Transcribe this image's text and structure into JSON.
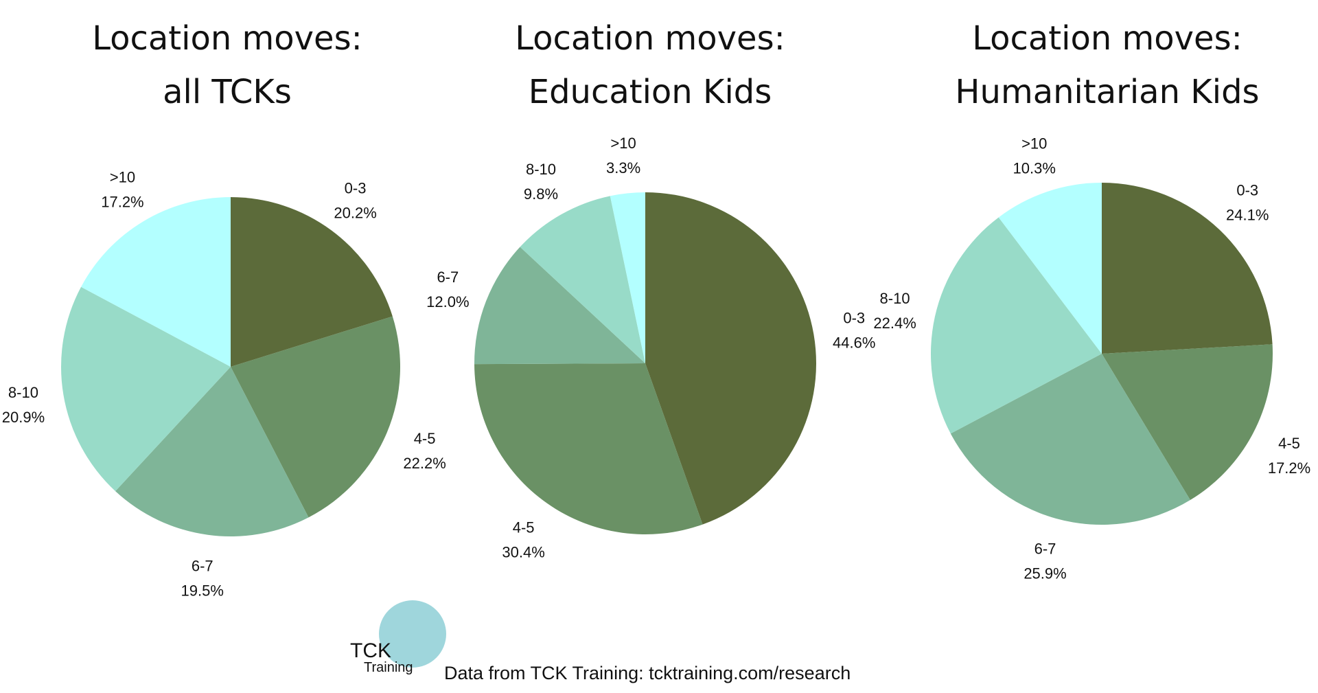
{
  "chart_data": [
    {
      "type": "pie",
      "title": [
        "Location moves:",
        "all TCKs"
      ],
      "categories": [
        "0-3",
        "4-5",
        "6-7",
        "8-10",
        ">10"
      ],
      "values": [
        20.2,
        22.2,
        19.5,
        20.9,
        17.2
      ],
      "value_labels": [
        "20.2%",
        "22.2%",
        "19.5%",
        "20.9%",
        "17.2%"
      ],
      "colors": [
        "#5c6b3a",
        "#6a9165",
        "#7fb598",
        "#98dbc8",
        "#b3ffff"
      ]
    },
    {
      "type": "pie",
      "title": [
        "Location moves:",
        "Education Kids"
      ],
      "categories": [
        "0-3",
        "4-5",
        "6-7",
        "8-10",
        ">10"
      ],
      "values": [
        44.6,
        30.4,
        12.0,
        9.8,
        3.3
      ],
      "value_labels": [
        "44.6%",
        "30.4%",
        "12.0%",
        "9.8%",
        "3.3%"
      ],
      "colors": [
        "#5c6b3a",
        "#6a9165",
        "#7fb598",
        "#98dbc8",
        "#b3ffff"
      ]
    },
    {
      "type": "pie",
      "title": [
        "Location moves:",
        "Humanitarian Kids"
      ],
      "categories": [
        "0-3",
        "4-5",
        "6-7",
        "8-10",
        ">10"
      ],
      "values": [
        24.1,
        17.2,
        25.9,
        22.4,
        10.3
      ],
      "value_labels": [
        "24.1%",
        "17.2%",
        "25.9%",
        "22.4%",
        "10.3%"
      ],
      "colors": [
        "#5c6b3a",
        "#6a9165",
        "#7fb598",
        "#98dbc8",
        "#b3ffff"
      ]
    }
  ],
  "footer": {
    "logo": [
      "TCK",
      "Training"
    ],
    "source": "Data from TCK Training: tcktraining.com/research"
  }
}
